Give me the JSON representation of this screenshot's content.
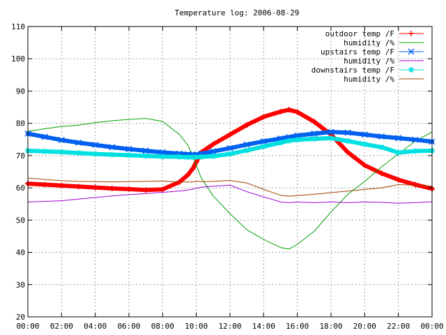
{
  "chart_data": {
    "type": "line",
    "title": "Temperature log: 2006-08-29",
    "xlabel": "",
    "ylabel": "",
    "xlim": [
      "00:00",
      "24:00"
    ],
    "ylim": [
      20,
      110
    ],
    "xticks": [
      "00:00",
      "02:00",
      "04:00",
      "06:00",
      "08:00",
      "10:00",
      "12:00",
      "14:00",
      "16:00",
      "18:00",
      "20:00",
      "22:00",
      "00:00"
    ],
    "yticks": [
      20,
      30,
      40,
      50,
      60,
      70,
      80,
      90,
      100,
      110
    ],
    "grid": true,
    "legend_position": "top-right",
    "x_hours": [
      0,
      1,
      2,
      3,
      4,
      5,
      6,
      7,
      8,
      9,
      9.5,
      9.8,
      10,
      10.3,
      11,
      12,
      13,
      14,
      15,
      15.5,
      16,
      17,
      18,
      19,
      20,
      21,
      22,
      23,
      24
    ],
    "series": [
      {
        "name": "outdoor temp /F",
        "color": "#ff0000",
        "marker": "plus",
        "values": [
          61.3,
          61.0,
          60.7,
          60.4,
          60.1,
          59.8,
          59.6,
          59.3,
          59.5,
          61.8,
          64.0,
          66.0,
          68.0,
          71.0,
          73.5,
          76.5,
          79.5,
          82.0,
          83.6,
          84.2,
          83.5,
          80.5,
          76.5,
          71.0,
          67.0,
          64.5,
          62.5,
          61.0,
          59.7
        ]
      },
      {
        "name": "humidity /%",
        "color": "#00a000",
        "marker": "none",
        "values": [
          77.5,
          78.3,
          79.0,
          79.4,
          80.2,
          80.8,
          81.2,
          81.5,
          80.6,
          76.5,
          73.2,
          70.0,
          67.0,
          63.0,
          57.5,
          52.0,
          47.0,
          44.0,
          41.5,
          41.0,
          42.5,
          46.5,
          52.5,
          58.0,
          62.0,
          66.5,
          70.5,
          74.5,
          77.3
        ]
      },
      {
        "name": "upstairs temp /F",
        "color": "#0060f0",
        "marker": "x",
        "values": [
          76.8,
          75.8,
          74.8,
          74.0,
          73.3,
          72.6,
          72.0,
          71.5,
          71.0,
          70.6,
          70.4,
          70.3,
          70.3,
          70.6,
          71.3,
          72.3,
          73.4,
          74.4,
          75.3,
          75.7,
          76.2,
          76.8,
          77.3,
          77.1,
          76.5,
          75.9,
          75.4,
          74.9,
          74.3
        ]
      },
      {
        "name": "humidity /%",
        "color": "#a000d0",
        "marker": "none",
        "values": [
          55.6,
          55.8,
          56.0,
          56.5,
          57.0,
          57.5,
          57.9,
          58.2,
          58.6,
          59.0,
          59.3,
          59.6,
          59.9,
          60.2,
          60.5,
          60.8,
          58.8,
          57.2,
          55.6,
          55.4,
          55.6,
          55.4,
          55.6,
          55.4,
          55.6,
          55.5,
          55.2,
          55.4,
          55.7
        ]
      },
      {
        "name": "downstairs temp /F",
        "color": "#00e0e0",
        "marker": "star",
        "values": [
          71.5,
          71.3,
          71.1,
          70.8,
          70.5,
          70.3,
          70.1,
          69.9,
          69.7,
          69.6,
          69.5,
          69.5,
          69.5,
          69.6,
          69.8,
          70.5,
          71.6,
          72.8,
          74.0,
          74.6,
          74.9,
          75.2,
          75.4,
          74.5,
          73.5,
          72.6,
          70.9,
          71.4,
          71.5
        ]
      },
      {
        "name": "humidity /%",
        "color": "#a04000",
        "marker": "none",
        "values": [
          63.0,
          62.6,
          62.2,
          62.0,
          61.9,
          61.8,
          61.9,
          62.0,
          62.1,
          61.8,
          61.8,
          61.8,
          62.0,
          61.9,
          62.0,
          62.3,
          61.5,
          59.5,
          57.7,
          57.4,
          57.6,
          58.0,
          58.5,
          59.0,
          59.5,
          60.0,
          61.0,
          60.8,
          60.5
        ]
      }
    ]
  }
}
